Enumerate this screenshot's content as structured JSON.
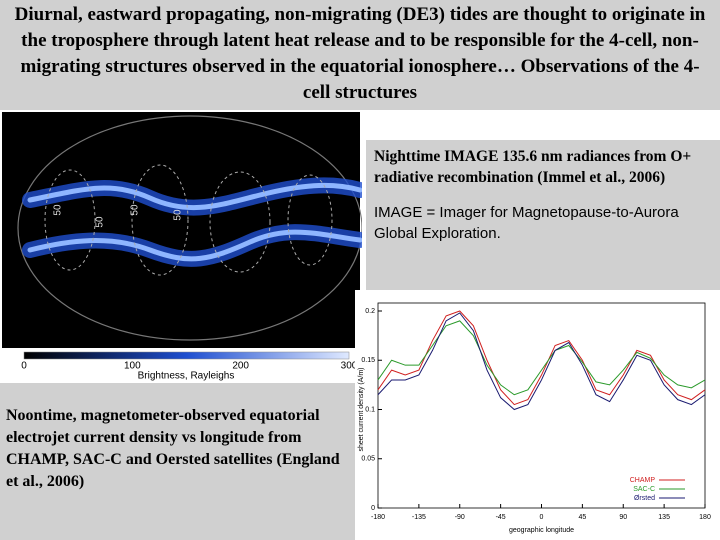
{
  "title": "Diurnal, eastward propagating, non-migrating (DE3) tides are thought to originate in the troposphere through latent heat release and to be responsible for the 4-cell, non-migrating structures observed in the equatorial ionosphere… Observations of the 4-cell structures",
  "image_note": {
    "caption": "Nighttime IMAGE 135.6 nm radiances from O+ radiative recombination (Immel et al., 2006)",
    "definition": "IMAGE = Imager for Magnetopause-to-Aurora Global Exploration."
  },
  "chart_note": {
    "caption": "Noontime, magnetometer-observed equatorial electrojet current density vs longitude from CHAMP, SAC-C and Oersted satellites (England et al., 2006)"
  },
  "map": {
    "contour_labels": [
      "50",
      "50",
      "50",
      "50"
    ],
    "colorbar_label": "Brightness, Rayleighs",
    "colorbar_lim": [
      0,
      300
    ],
    "colorbar_ticks": [
      0,
      100,
      200,
      300
    ]
  },
  "chart_data": {
    "type": "line",
    "xlabel": "geographic longitude",
    "ylabel": "sheet current density (A/m)",
    "x": [
      -180,
      -165,
      -150,
      -135,
      -120,
      -105,
      -90,
      -75,
      -60,
      -45,
      -30,
      -15,
      0,
      15,
      30,
      45,
      60,
      75,
      90,
      105,
      120,
      135,
      150,
      165,
      180
    ],
    "xlim": [
      -180,
      180
    ],
    "xticks": [
      -180,
      -135,
      -90,
      -45,
      0,
      45,
      90,
      135,
      180
    ],
    "ylim": [
      0,
      0.2
    ],
    "yticks": [
      0,
      0.05,
      0.1,
      0.15,
      0.2
    ],
    "legend": "lower right",
    "series": [
      {
        "name": "CHAMP",
        "color": "#d02020",
        "values": [
          0.12,
          0.14,
          0.135,
          0.14,
          0.17,
          0.195,
          0.2,
          0.185,
          0.15,
          0.12,
          0.105,
          0.11,
          0.135,
          0.165,
          0.17,
          0.15,
          0.12,
          0.115,
          0.135,
          0.16,
          0.155,
          0.13,
          0.115,
          0.11,
          0.12
        ]
      },
      {
        "name": "SAC-C",
        "color": "#2a9a2a",
        "values": [
          0.13,
          0.15,
          0.145,
          0.145,
          0.165,
          0.185,
          0.19,
          0.175,
          0.145,
          0.125,
          0.115,
          0.12,
          0.14,
          0.16,
          0.165,
          0.148,
          0.128,
          0.125,
          0.14,
          0.158,
          0.152,
          0.135,
          0.125,
          0.122,
          0.13
        ]
      },
      {
        "name": "Ørsted",
        "color": "#1a1a70",
        "values": [
          0.115,
          0.13,
          0.13,
          0.135,
          0.16,
          0.19,
          0.198,
          0.18,
          0.14,
          0.112,
          0.1,
          0.105,
          0.13,
          0.16,
          0.168,
          0.145,
          0.115,
          0.108,
          0.13,
          0.155,
          0.15,
          0.125,
          0.11,
          0.105,
          0.115
        ]
      }
    ]
  }
}
